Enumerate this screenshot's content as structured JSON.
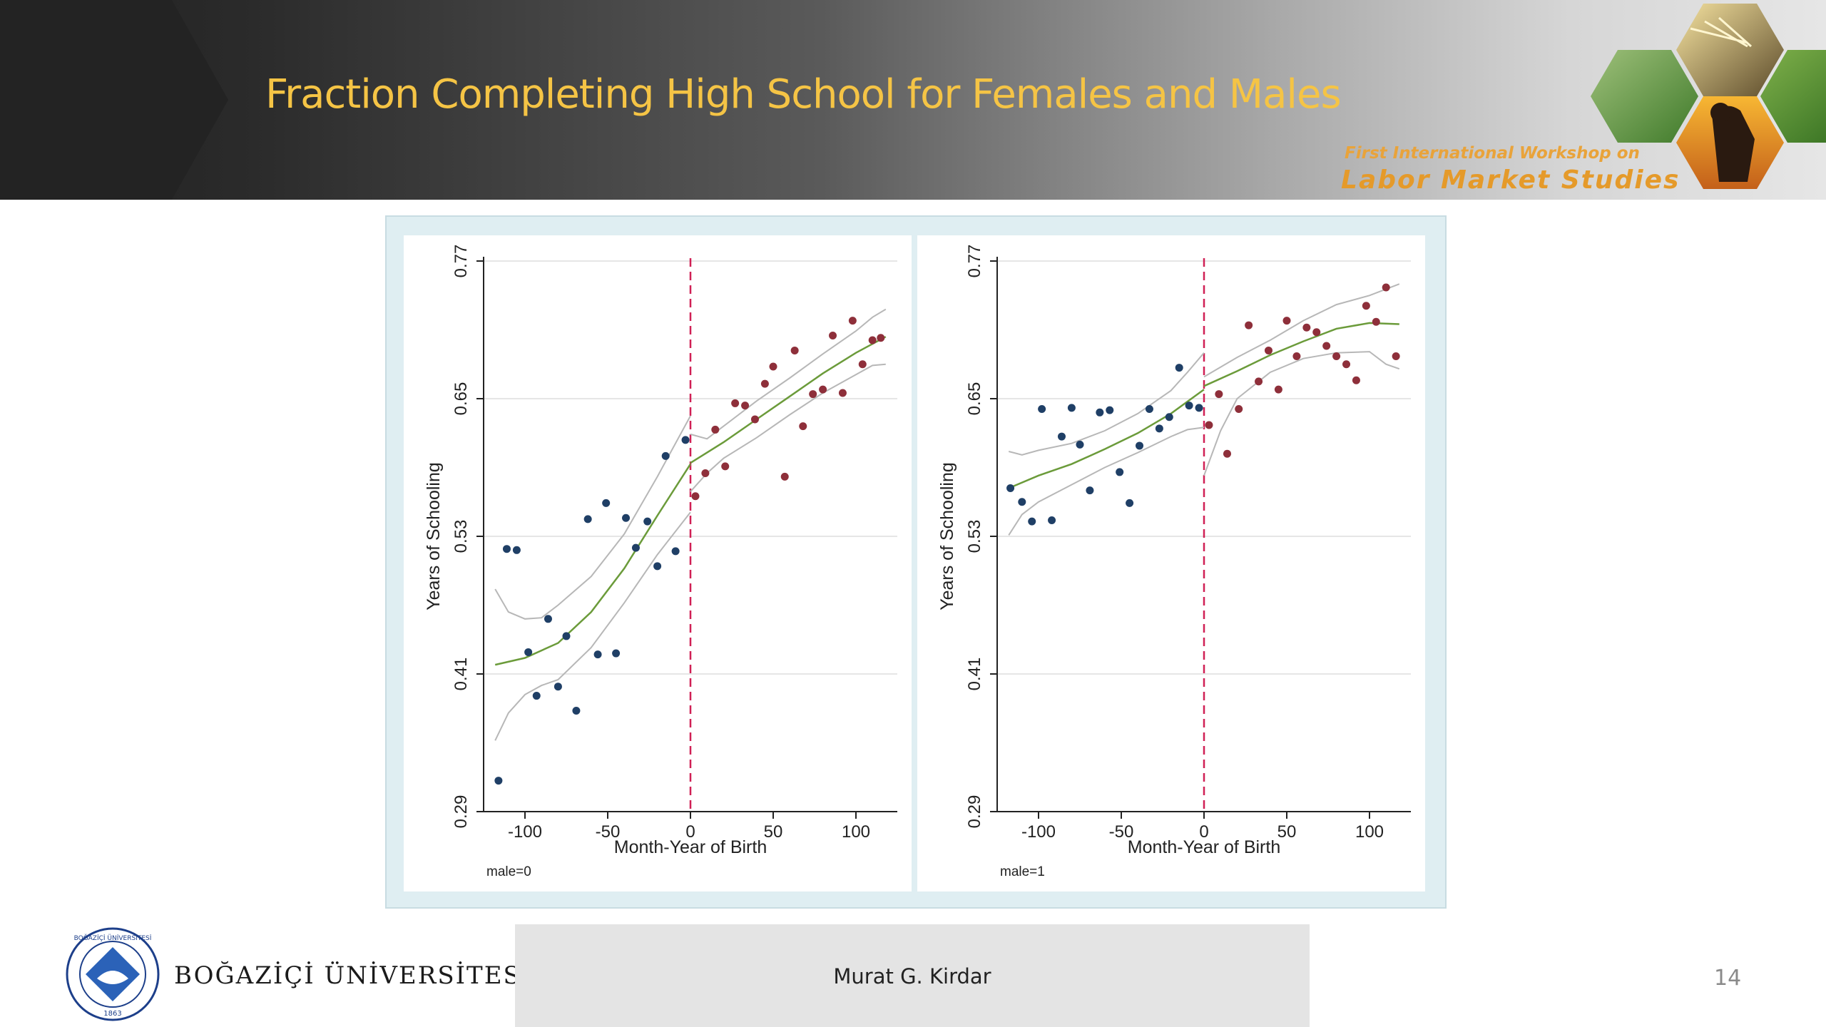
{
  "slide": {
    "title": "Fraction Completing High School for Females and Males",
    "author": "Murat G. Kirdar",
    "page_number": "14",
    "university": "BOĞAZİÇİ ÜNİVERSİTESİ",
    "seal_text": "BOĞAZİÇİ ÜNİVERSİTESİ",
    "seal_year": "1863",
    "workshop_line1": "First International Workshop on",
    "workshop_line2": "Labor Market Studies"
  },
  "colors": {
    "title": "#f5c445",
    "before_cutoff": "#1f3f66",
    "after_cutoff": "#8e2f3a",
    "fit_line": "#6b9b3a",
    "ci_band": "#b7b7b7",
    "cutoff_line": "#d02055"
  },
  "chart_data": [
    {
      "type": "scatter",
      "panel_label": "male=0",
      "xlabel": "Month-Year of Birth",
      "ylabel": "Years of Schooling",
      "xlim": [
        -125,
        125
      ],
      "ylim": [
        0.29,
        0.77
      ],
      "xticks": [
        -100,
        -50,
        0,
        50,
        100
      ],
      "xtick_labels": [
        "-100",
        "-50",
        "0",
        "50",
        "100"
      ],
      "yticks": [
        0.29,
        0.41,
        0.53,
        0.65,
        0.77
      ],
      "ytick_labels": [
        "0.29",
        "0.41",
        "0.53",
        "0.65",
        "0.77"
      ],
      "cutoff_x": 0,
      "grid": true,
      "series": [
        {
          "points": [
            [
              -116,
              0.317
            ],
            [
              -111,
              0.519
            ],
            [
              -105,
              0.518
            ],
            [
              -98,
              0.429
            ],
            [
              -93,
              0.391
            ],
            [
              -86,
              0.458
            ],
            [
              -80,
              0.399
            ],
            [
              -75,
              0.443
            ],
            [
              -69,
              0.378
            ],
            [
              -62,
              0.545
            ],
            [
              -56,
              0.427
            ],
            [
              -51,
              0.559
            ],
            [
              -45,
              0.428
            ],
            [
              -39,
              0.546
            ],
            [
              -33,
              0.52
            ],
            [
              -26,
              0.543
            ],
            [
              -20,
              0.504
            ],
            [
              -15,
              0.6
            ],
            [
              -9,
              0.517
            ],
            [
              -3,
              0.614
            ]
          ]
        },
        {
          "points": [
            [
              3,
              0.565
            ],
            [
              9,
              0.585
            ],
            [
              15,
              0.623
            ],
            [
              21,
              0.591
            ],
            [
              27,
              0.646
            ],
            [
              33,
              0.644
            ],
            [
              39,
              0.632
            ],
            [
              45,
              0.663
            ],
            [
              50,
              0.678
            ],
            [
              57,
              0.582
            ],
            [
              63,
              0.692
            ],
            [
              68,
              0.626
            ],
            [
              74,
              0.654
            ],
            [
              80,
              0.658
            ],
            [
              86,
              0.705
            ],
            [
              92,
              0.655
            ],
            [
              98,
              0.718
            ],
            [
              104,
              0.68
            ],
            [
              110,
              0.701
            ],
            [
              115,
              0.703
            ]
          ]
        }
      ],
      "fit_left": {
        "center": [
          [
            -118,
            0.418
          ],
          [
            -100,
            0.424
          ],
          [
            -80,
            0.437
          ],
          [
            -60,
            0.464
          ],
          [
            -40,
            0.502
          ],
          [
            -20,
            0.548
          ],
          [
            0,
            0.593
          ]
        ],
        "upper": [
          [
            -118,
            0.484
          ],
          [
            -110,
            0.464
          ],
          [
            -100,
            0.458
          ],
          [
            -90,
            0.459
          ],
          [
            -80,
            0.47
          ],
          [
            -60,
            0.495
          ],
          [
            -40,
            0.532
          ],
          [
            -20,
            0.582
          ],
          [
            0,
            0.635
          ]
        ],
        "lower": [
          [
            -118,
            0.352
          ],
          [
            -110,
            0.376
          ],
          [
            -100,
            0.392
          ],
          [
            -90,
            0.4
          ],
          [
            -80,
            0.405
          ],
          [
            -60,
            0.433
          ],
          [
            -40,
            0.472
          ],
          [
            -20,
            0.514
          ],
          [
            0,
            0.551
          ]
        ]
      },
      "fit_right": {
        "center": [
          [
            0,
            0.594
          ],
          [
            20,
            0.612
          ],
          [
            40,
            0.632
          ],
          [
            60,
            0.652
          ],
          [
            80,
            0.672
          ],
          [
            100,
            0.69
          ],
          [
            118,
            0.704
          ]
        ],
        "upper": [
          [
            0,
            0.619
          ],
          [
            10,
            0.615
          ],
          [
            20,
            0.626
          ],
          [
            40,
            0.648
          ],
          [
            60,
            0.668
          ],
          [
            80,
            0.689
          ],
          [
            100,
            0.709
          ],
          [
            110,
            0.721
          ],
          [
            118,
            0.728
          ]
        ],
        "lower": [
          [
            0,
            0.569
          ],
          [
            10,
            0.585
          ],
          [
            20,
            0.598
          ],
          [
            40,
            0.616
          ],
          [
            60,
            0.636
          ],
          [
            80,
            0.655
          ],
          [
            100,
            0.671
          ],
          [
            110,
            0.679
          ],
          [
            118,
            0.68
          ]
        ]
      }
    },
    {
      "type": "scatter",
      "panel_label": "male=1",
      "xlabel": "Month-Year of Birth",
      "ylabel": "Years of Schooling",
      "xlim": [
        -125,
        125
      ],
      "ylim": [
        0.29,
        0.77
      ],
      "xticks": [
        -100,
        -50,
        0,
        50,
        100
      ],
      "xtick_labels": [
        "-100",
        "-50",
        "0",
        "50",
        "100"
      ],
      "yticks": [
        0.29,
        0.41,
        0.53,
        0.65,
        0.77
      ],
      "ytick_labels": [
        "0.29",
        "0.41",
        "0.53",
        "0.65",
        "0.77"
      ],
      "cutoff_x": 0,
      "grid": true,
      "series": [
        {
          "points": [
            [
              -117,
              0.572
            ],
            [
              -110,
              0.56
            ],
            [
              -104,
              0.543
            ],
            [
              -98,
              0.641
            ],
            [
              -92,
              0.544
            ],
            [
              -86,
              0.617
            ],
            [
              -80,
              0.642
            ],
            [
              -75,
              0.61
            ],
            [
              -69,
              0.57
            ],
            [
              -63,
              0.638
            ],
            [
              -57,
              0.64
            ],
            [
              -51,
              0.586
            ],
            [
              -45,
              0.559
            ],
            [
              -39,
              0.609
            ],
            [
              -33,
              0.641
            ],
            [
              -27,
              0.624
            ],
            [
              -21,
              0.634
            ],
            [
              -15,
              0.677
            ],
            [
              -9,
              0.644
            ],
            [
              -3,
              0.642
            ]
          ]
        },
        {
          "points": [
            [
              3,
              0.627
            ],
            [
              9,
              0.654
            ],
            [
              14,
              0.602
            ],
            [
              21,
              0.641
            ],
            [
              27,
              0.714
            ],
            [
              33,
              0.665
            ],
            [
              39,
              0.692
            ],
            [
              45,
              0.658
            ],
            [
              50,
              0.718
            ],
            [
              56,
              0.687
            ],
            [
              62,
              0.712
            ],
            [
              68,
              0.708
            ],
            [
              74,
              0.696
            ],
            [
              80,
              0.687
            ],
            [
              86,
              0.68
            ],
            [
              92,
              0.666
            ],
            [
              98,
              0.731
            ],
            [
              104,
              0.717
            ],
            [
              110,
              0.747
            ],
            [
              116,
              0.687
            ]
          ]
        }
      ],
      "fit_left": {
        "center": [
          [
            -118,
            0.572
          ],
          [
            -100,
            0.583
          ],
          [
            -80,
            0.593
          ],
          [
            -60,
            0.606
          ],
          [
            -40,
            0.62
          ],
          [
            -20,
            0.637
          ],
          [
            0,
            0.658
          ]
        ],
        "upper": [
          [
            -118,
            0.604
          ],
          [
            -110,
            0.601
          ],
          [
            -100,
            0.605
          ],
          [
            -80,
            0.611
          ],
          [
            -60,
            0.622
          ],
          [
            -40,
            0.637
          ],
          [
            -20,
            0.657
          ],
          [
            -10,
            0.673
          ],
          [
            0,
            0.69
          ]
        ],
        "lower": [
          [
            -118,
            0.531
          ],
          [
            -110,
            0.549
          ],
          [
            -100,
            0.56
          ],
          [
            -80,
            0.575
          ],
          [
            -60,
            0.59
          ],
          [
            -40,
            0.603
          ],
          [
            -20,
            0.617
          ],
          [
            -10,
            0.623
          ],
          [
            0,
            0.625
          ]
        ]
      },
      "fit_right": {
        "center": [
          [
            0,
            0.661
          ],
          [
            20,
            0.674
          ],
          [
            40,
            0.688
          ],
          [
            60,
            0.7
          ],
          [
            80,
            0.711
          ],
          [
            100,
            0.716
          ],
          [
            118,
            0.715
          ]
        ],
        "upper": [
          [
            0,
            0.669
          ],
          [
            20,
            0.686
          ],
          [
            40,
            0.701
          ],
          [
            60,
            0.718
          ],
          [
            80,
            0.732
          ],
          [
            100,
            0.74
          ],
          [
            118,
            0.75
          ]
        ],
        "lower": [
          [
            0,
            0.583
          ],
          [
            10,
            0.622
          ],
          [
            20,
            0.65
          ],
          [
            40,
            0.673
          ],
          [
            60,
            0.685
          ],
          [
            80,
            0.69
          ],
          [
            100,
            0.691
          ],
          [
            110,
            0.68
          ],
          [
            118,
            0.676
          ]
        ]
      }
    }
  ]
}
